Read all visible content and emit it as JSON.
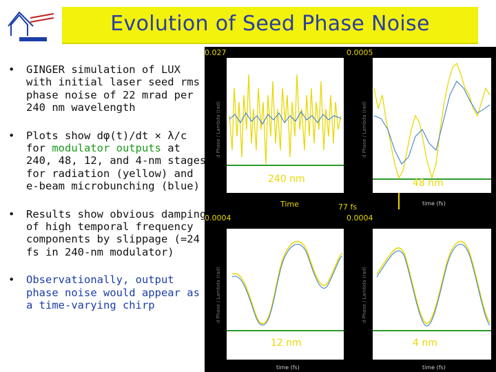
{
  "slide": {
    "title": "Evolution of Seed Phase Noise",
    "logo_icon": "berkeley-lab-logo",
    "accent": "#f2f20c"
  },
  "bullets": {
    "b1": "GINGER simulation of LUX with initial laser seed rms phase noise of 22 mrad per 240 nm wavelength",
    "b2_pre": "Plots show dφ(t)/dt × λ/c for ",
    "b2_hl": "modulator outputs",
    "b2_post": " at 240, 48, 12, and 4-nm stages for radiation (yellow) and e-beam microbunching (blue)",
    "b3": "Results show obvious damping of high temporal frequency components by slippage (=24 fs in 240-nm modulator)",
    "b4": "Observationally, output phase noise would appear as a time-varying chirp"
  },
  "plots": {
    "p1": {
      "label": "240 nm",
      "ytop": "0.027",
      "xlabel": "Time"
    },
    "p2": {
      "label": "48 nm",
      "ytop": "0.0005",
      "xlabel": "time (fs)",
      "span": "77 fs"
    },
    "p3": {
      "label": "12 nm",
      "ytop": "0.0004",
      "xlabel": "time (fs)"
    },
    "p4": {
      "label": "4 nm",
      "ytop": "0.0004",
      "xlabel": "time (fs)"
    },
    "ylabel": "d Phase / Lambda (rad)"
  }
}
